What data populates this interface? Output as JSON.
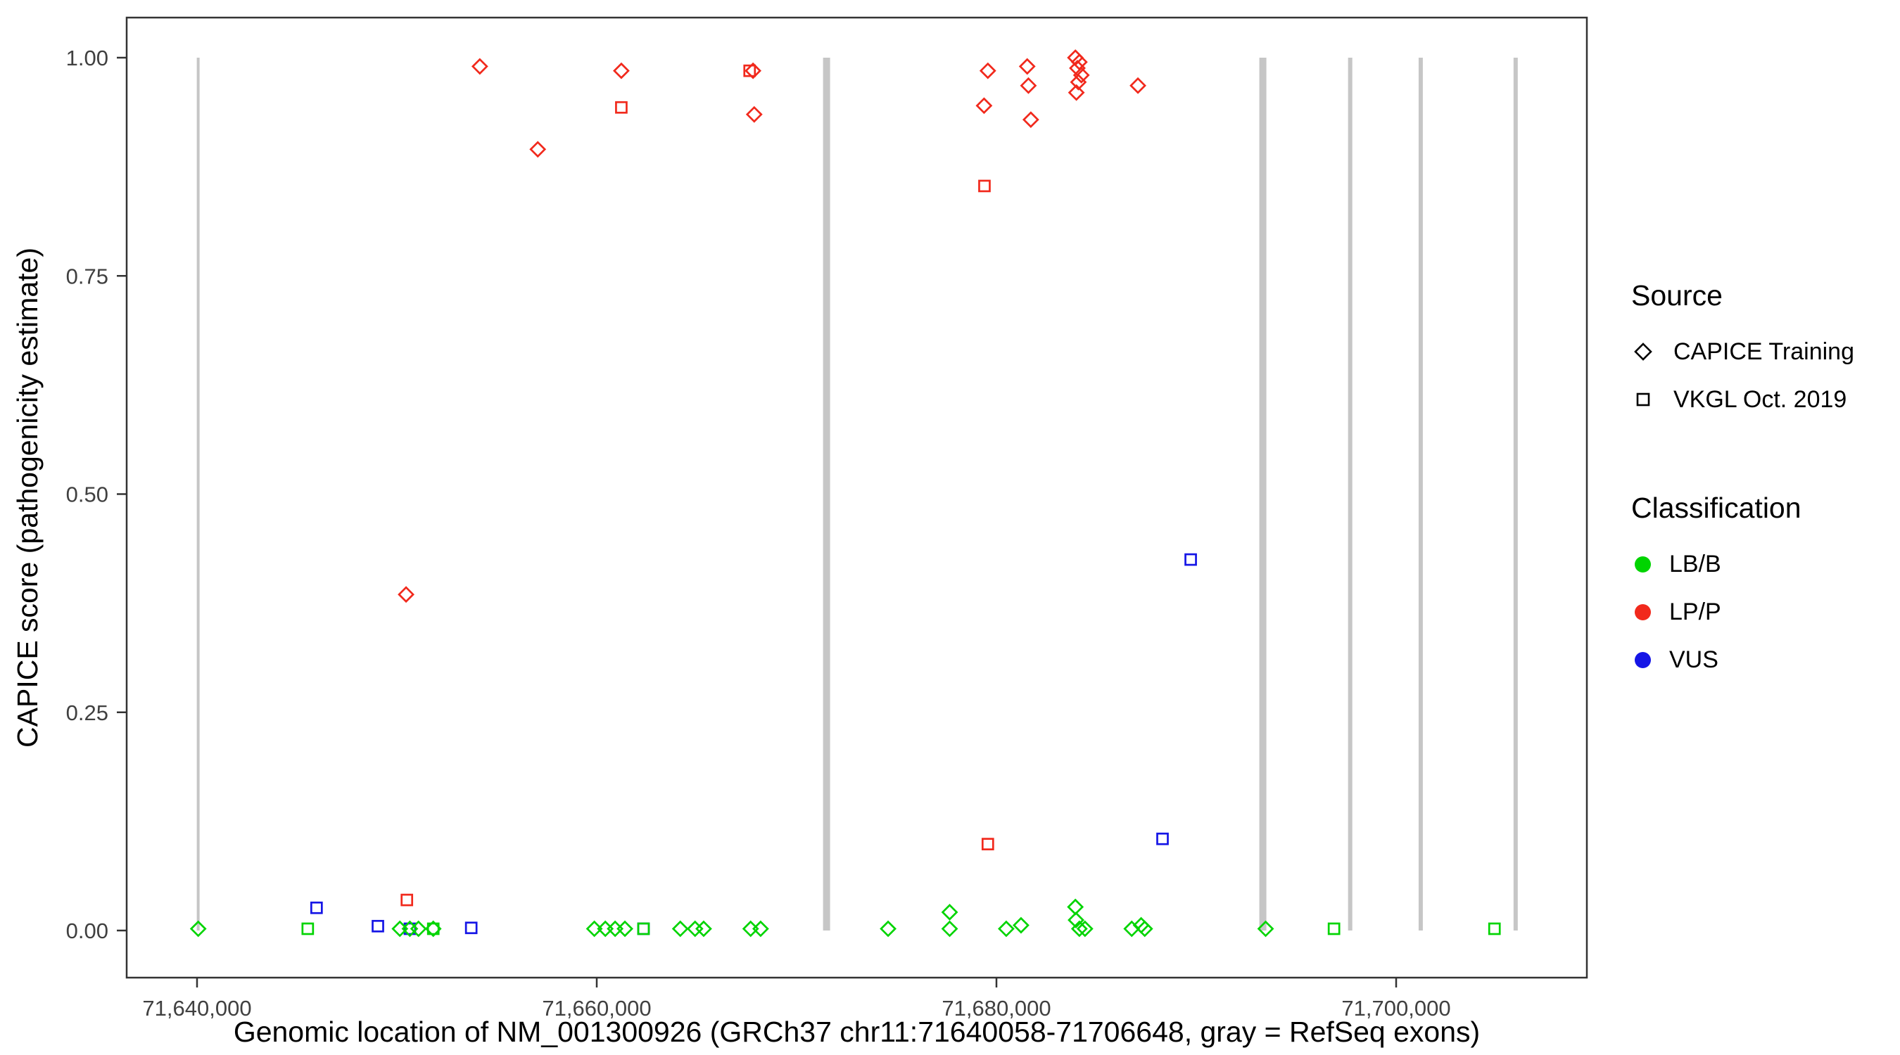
{
  "chart_data": {
    "type": "scatter",
    "title": "",
    "xlabel": "Genomic location of NM_001300926 (GRCh37 chr11:71640058-71706648, gray = RefSeq exons)",
    "ylabel": "CAPICE score (pathogenicity estimate)",
    "xlim": [
      71636500,
      71709500
    ],
    "ylim": [
      -0.05,
      1.05
    ],
    "grid": false,
    "legend_position": "right",
    "x_ticks": [
      {
        "value": 71640000,
        "label": "71,640,000"
      },
      {
        "value": 71660000,
        "label": "71,660,000"
      },
      {
        "value": 71680000,
        "label": "71,680,000"
      },
      {
        "value": 71700000,
        "label": "71,700,000"
      }
    ],
    "y_ticks": [
      {
        "value": 0.0,
        "label": "0.00"
      },
      {
        "value": 0.25,
        "label": "0.25"
      },
      {
        "value": 0.5,
        "label": "0.50"
      },
      {
        "value": 0.75,
        "label": "0.75"
      },
      {
        "value": 1.0,
        "label": "1.00"
      }
    ],
    "exon_color": "#c6c6c6",
    "exons": [
      {
        "x": 71640058,
        "width": 4
      },
      {
        "x": 71671500,
        "width": 10
      },
      {
        "x": 71693330,
        "width": 10
      },
      {
        "x": 71697700,
        "width": 6
      },
      {
        "x": 71701230,
        "width": 6
      },
      {
        "x": 71705980,
        "width": 6
      }
    ],
    "colors": {
      "LB/B": "#00d400",
      "LP/P": "#f1291c",
      "VUS": "#1515e6"
    },
    "marker_by_source": {
      "CAPICE Training": "diamond",
      "VKGL Oct. 2019": "square"
    },
    "points": [
      {
        "x": 71650460,
        "y": 0.385,
        "c": "LP/P",
        "s": "training"
      },
      {
        "x": 71654150,
        "y": 0.99,
        "c": "LP/P",
        "s": "training"
      },
      {
        "x": 71657050,
        "y": 0.895,
        "c": "LP/P",
        "s": "training"
      },
      {
        "x": 71661230,
        "y": 0.985,
        "c": "LP/P",
        "s": "training"
      },
      {
        "x": 71667820,
        "y": 0.985,
        "c": "LP/P",
        "s": "training"
      },
      {
        "x": 71667880,
        "y": 0.935,
        "c": "LP/P",
        "s": "training"
      },
      {
        "x": 71679570,
        "y": 0.985,
        "c": "LP/P",
        "s": "training"
      },
      {
        "x": 71679380,
        "y": 0.945,
        "c": "LP/P",
        "s": "training"
      },
      {
        "x": 71681540,
        "y": 0.99,
        "c": "LP/P",
        "s": "training"
      },
      {
        "x": 71681600,
        "y": 0.968,
        "c": "LP/P",
        "s": "training"
      },
      {
        "x": 71681720,
        "y": 0.929,
        "c": "LP/P",
        "s": "training"
      },
      {
        "x": 71683950,
        "y": 1.0,
        "c": "LP/P",
        "s": "training"
      },
      {
        "x": 71684150,
        "y": 0.995,
        "c": "LP/P",
        "s": "training"
      },
      {
        "x": 71684050,
        "y": 0.988,
        "c": "LP/P",
        "s": "training"
      },
      {
        "x": 71684250,
        "y": 0.98,
        "c": "LP/P",
        "s": "training"
      },
      {
        "x": 71684100,
        "y": 0.972,
        "c": "LP/P",
        "s": "training"
      },
      {
        "x": 71684000,
        "y": 0.96,
        "c": "LP/P",
        "s": "training"
      },
      {
        "x": 71687080,
        "y": 0.968,
        "c": "LP/P",
        "s": "training"
      },
      {
        "x": 71650500,
        "y": 0.035,
        "c": "LP/P",
        "s": "vkgl"
      },
      {
        "x": 71661230,
        "y": 0.943,
        "c": "LP/P",
        "s": "vkgl"
      },
      {
        "x": 71667650,
        "y": 0.985,
        "c": "LP/P",
        "s": "vkgl"
      },
      {
        "x": 71679400,
        "y": 0.853,
        "c": "LP/P",
        "s": "vkgl"
      },
      {
        "x": 71679570,
        "y": 0.099,
        "c": "LP/P",
        "s": "vkgl"
      },
      {
        "x": 71645980,
        "y": 0.026,
        "c": "VUS",
        "s": "vkgl"
      },
      {
        "x": 71649050,
        "y": 0.005,
        "c": "VUS",
        "s": "vkgl"
      },
      {
        "x": 71650650,
        "y": 0.002,
        "c": "VUS",
        "s": "vkgl"
      },
      {
        "x": 71653720,
        "y": 0.003,
        "c": "VUS",
        "s": "vkgl"
      },
      {
        "x": 71662340,
        "y": 0.002,
        "c": "VUS",
        "s": "vkgl"
      },
      {
        "x": 71688310,
        "y": 0.105,
        "c": "VUS",
        "s": "vkgl"
      },
      {
        "x": 71689720,
        "y": 0.425,
        "c": "VUS",
        "s": "vkgl"
      },
      {
        "x": 71640060,
        "y": 0.002,
        "c": "LB/B",
        "s": "training"
      },
      {
        "x": 71650150,
        "y": 0.002,
        "c": "LB/B",
        "s": "training"
      },
      {
        "x": 71650650,
        "y": 0.002,
        "c": "LB/B",
        "s": "training"
      },
      {
        "x": 71651080,
        "y": 0.002,
        "c": "LB/B",
        "s": "training"
      },
      {
        "x": 71651820,
        "y": 0.002,
        "c": "LB/B",
        "s": "training"
      },
      {
        "x": 71659880,
        "y": 0.002,
        "c": "LB/B",
        "s": "training"
      },
      {
        "x": 71660430,
        "y": 0.002,
        "c": "LB/B",
        "s": "training"
      },
      {
        "x": 71660920,
        "y": 0.002,
        "c": "LB/B",
        "s": "training"
      },
      {
        "x": 71661410,
        "y": 0.002,
        "c": "LB/B",
        "s": "training"
      },
      {
        "x": 71664180,
        "y": 0.002,
        "c": "LB/B",
        "s": "training"
      },
      {
        "x": 71664920,
        "y": 0.002,
        "c": "LB/B",
        "s": "training"
      },
      {
        "x": 71665350,
        "y": 0.002,
        "c": "LB/B",
        "s": "training"
      },
      {
        "x": 71667700,
        "y": 0.002,
        "c": "LB/B",
        "s": "training"
      },
      {
        "x": 71668200,
        "y": 0.002,
        "c": "LB/B",
        "s": "training"
      },
      {
        "x": 71674580,
        "y": 0.002,
        "c": "LB/B",
        "s": "training"
      },
      {
        "x": 71677660,
        "y": 0.021,
        "c": "LB/B",
        "s": "training"
      },
      {
        "x": 71677660,
        "y": 0.002,
        "c": "LB/B",
        "s": "training"
      },
      {
        "x": 71680490,
        "y": 0.002,
        "c": "LB/B",
        "s": "training"
      },
      {
        "x": 71681230,
        "y": 0.006,
        "c": "LB/B",
        "s": "training"
      },
      {
        "x": 71683950,
        "y": 0.027,
        "c": "LB/B",
        "s": "training"
      },
      {
        "x": 71683980,
        "y": 0.012,
        "c": "LB/B",
        "s": "training"
      },
      {
        "x": 71684150,
        "y": 0.002,
        "c": "LB/B",
        "s": "training"
      },
      {
        "x": 71684430,
        "y": 0.002,
        "c": "LB/B",
        "s": "training"
      },
      {
        "x": 71686770,
        "y": 0.002,
        "c": "LB/B",
        "s": "training"
      },
      {
        "x": 71687240,
        "y": 0.006,
        "c": "LB/B",
        "s": "training"
      },
      {
        "x": 71687420,
        "y": 0.002,
        "c": "LB/B",
        "s": "training"
      },
      {
        "x": 71693470,
        "y": 0.002,
        "c": "LB/B",
        "s": "training"
      },
      {
        "x": 71645540,
        "y": 0.002,
        "c": "LB/B",
        "s": "vkgl"
      },
      {
        "x": 71651820,
        "y": 0.002,
        "c": "LB/B",
        "s": "vkgl"
      },
      {
        "x": 71662340,
        "y": 0.002,
        "c": "LB/B",
        "s": "vkgl"
      },
      {
        "x": 71696890,
        "y": 0.002,
        "c": "LB/B",
        "s": "vkgl"
      },
      {
        "x": 71704920,
        "y": 0.002,
        "c": "LB/B",
        "s": "vkgl"
      }
    ]
  },
  "legend": {
    "source": {
      "title": "Source",
      "items": [
        {
          "label": "CAPICE Training",
          "marker": "diamond"
        },
        {
          "label": "VKGL Oct. 2019",
          "marker": "square"
        }
      ]
    },
    "classification": {
      "title": "Classification",
      "items": [
        {
          "label": "LB/B",
          "color_key": "LB/B"
        },
        {
          "label": "LP/P",
          "color_key": "LP/P"
        },
        {
          "label": "VUS",
          "color_key": "VUS"
        }
      ]
    }
  }
}
